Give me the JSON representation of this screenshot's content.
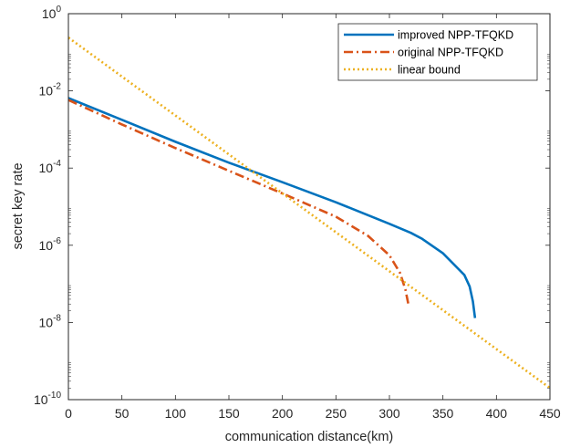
{
  "chart_data": {
    "type": "line",
    "xlabel": "communication distance(km)",
    "ylabel": "secret key rate",
    "xlim": [
      0,
      450
    ],
    "ylim": [
      1e-10,
      1
    ],
    "yscale": "log",
    "x_ticks": [
      "0",
      "50",
      "100",
      "150",
      "200",
      "250",
      "300",
      "350",
      "400",
      "450"
    ],
    "y_ticks": [
      {
        "base": "10",
        "exp": "-10"
      },
      {
        "base": "10",
        "exp": "-8"
      },
      {
        "base": "10",
        "exp": "-6"
      },
      {
        "base": "10",
        "exp": "-4"
      },
      {
        "base": "10",
        "exp": "-2"
      },
      {
        "base": "10",
        "exp": "0"
      }
    ],
    "legend_position": "top-right",
    "grid": false,
    "series": [
      {
        "name": "improved NPP-TFQKD",
        "color": "#0072BD",
        "style": "solid",
        "x": [
          0,
          50,
          100,
          150,
          200,
          250,
          300,
          320,
          330,
          350,
          370,
          375,
          378,
          380
        ],
        "y": [
          0.0065,
          0.00178,
          0.00048,
          0.000138,
          4.3e-05,
          1.3e-05,
          3.6e-06,
          2.1e-06,
          1.5e-06,
          6.2e-07,
          1.7e-07,
          8.5e-08,
          3.5e-08,
          1.3e-08
        ]
      },
      {
        "name": "original NPP-TFQKD",
        "color": "#D95319",
        "style": "dashdot",
        "x": [
          0,
          50,
          100,
          150,
          200,
          250,
          280,
          300,
          310,
          315,
          318
        ],
        "y": [
          0.0058,
          0.00135,
          0.00033,
          8.5e-05,
          2.2e-05,
          5.5e-06,
          1.75e-06,
          5.5e-07,
          1.9e-07,
          7e-08,
          2.7e-08
        ]
      },
      {
        "name": "linear bound",
        "color": "#EDB120",
        "style": "dotted",
        "x": [
          0,
          450
        ],
        "y": [
          0.24,
          2e-10
        ]
      }
    ]
  }
}
